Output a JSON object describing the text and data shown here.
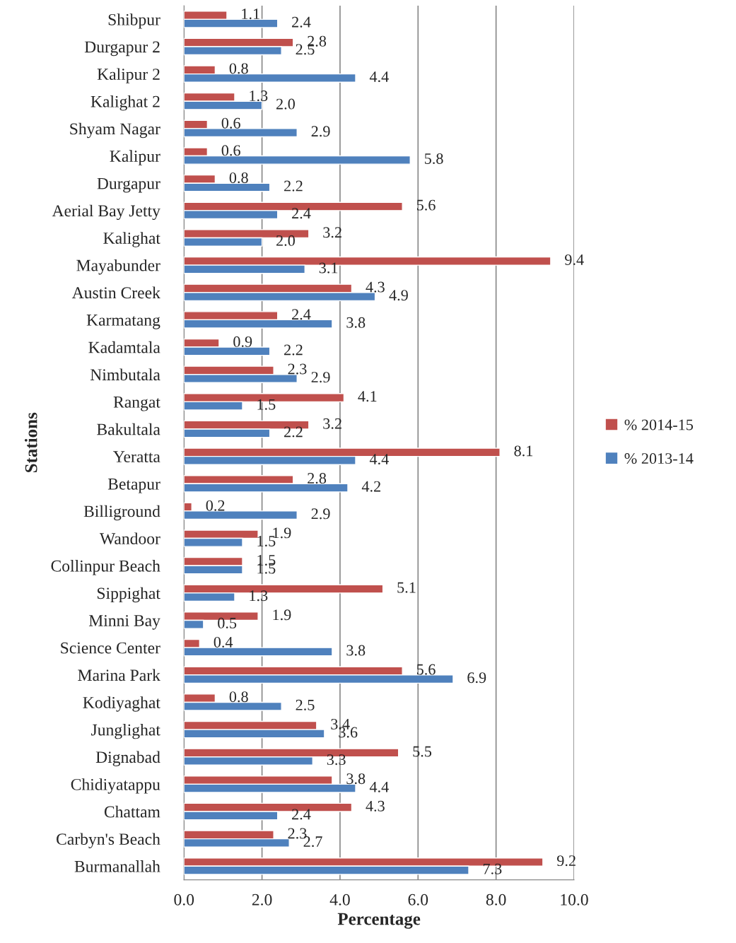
{
  "chart_data": {
    "type": "bar",
    "orientation": "horizontal",
    "xlabel": "Percentage",
    "ylabel": "Stations",
    "categories": [
      "Shibpur",
      "Durgapur 2",
      "Kalipur 2",
      "Kalighat 2",
      "Shyam Nagar",
      "Kalipur",
      "Durgapur",
      "Aerial Bay Jetty",
      "Kalighat",
      "Mayabunder",
      "Austin Creek",
      "Karmatang",
      "Kadamtala",
      "Nimbutala",
      "Rangat",
      "Bakultala",
      "Yeratta",
      "Betapur",
      "Billiground",
      "Wandoor",
      "Collinpur Beach",
      "Sippighat",
      "Minni Bay",
      "Science Center",
      "Marina Park",
      "Kodiyaghat",
      "Junglighat",
      "Dignabad",
      "Chidiyatappu",
      "Chattam",
      "Carbyn's Beach",
      "Burmanallah"
    ],
    "series": [
      {
        "name": "% 2014-15",
        "color": "#c0504d",
        "values": [
          1.1,
          2.8,
          0.8,
          1.3,
          0.6,
          0.6,
          0.8,
          5.6,
          3.2,
          9.4,
          4.3,
          2.4,
          0.9,
          2.3,
          4.1,
          3.2,
          8.1,
          2.8,
          0.2,
          1.9,
          1.5,
          5.1,
          1.9,
          0.4,
          5.6,
          0.8,
          3.4,
          5.5,
          3.8,
          4.3,
          2.3,
          9.2
        ],
        "value_labels": [
          "1.1",
          "2.8",
          "0.8",
          "1.3",
          "0.6",
          "0.6",
          "0.8",
          "5.6",
          "3.2",
          "9.4",
          "4.3",
          "2.4",
          "0.9",
          "2.3",
          "4.1",
          "3.2",
          "8.1",
          "2.8",
          "0.2",
          "1.9",
          "1.5",
          "5.1",
          "1.9",
          "0.4",
          "5.6",
          "0.8",
          "3.4",
          "5.5",
          "3.8",
          "4.3",
          "2.3",
          "9.2"
        ]
      },
      {
        "name": "% 2013-14",
        "color": "#4f81bd",
        "values": [
          2.4,
          2.5,
          4.4,
          2.0,
          2.9,
          5.8,
          2.2,
          2.4,
          2.0,
          3.1,
          4.9,
          3.8,
          2.2,
          2.9,
          1.5,
          2.2,
          4.4,
          4.2,
          2.9,
          1.5,
          1.5,
          1.3,
          0.5,
          3.8,
          6.9,
          2.5,
          3.6,
          3.3,
          4.4,
          2.4,
          2.7,
          7.3
        ],
        "value_labels": [
          "2.4",
          "2.5",
          "4.4",
          "2.0",
          "2.9",
          "5.8",
          "2.2",
          "2.4",
          "2.0",
          "3.1",
          "4.9",
          "3.8",
          "2.2",
          "2.9",
          "1.5",
          "2.2",
          "4.4",
          "4.2",
          "2.9",
          "1.5",
          "1.5",
          "1.3",
          "0.5",
          "3.8",
          "6.9",
          "2.5",
          "3.6",
          "3.3",
          "4.4",
          "2.4",
          "2.7",
          "7.3"
        ]
      }
    ],
    "xlim": [
      0,
      10
    ],
    "xticks": [
      {
        "value": 0,
        "label": "0.0"
      },
      {
        "value": 2,
        "label": "2.0"
      },
      {
        "value": 4,
        "label": "4.0"
      },
      {
        "value": 6,
        "label": "6.0"
      },
      {
        "value": 8,
        "label": "8.0"
      },
      {
        "value": 10,
        "label": "10.0"
      }
    ],
    "grid": "x",
    "legend": "right"
  }
}
